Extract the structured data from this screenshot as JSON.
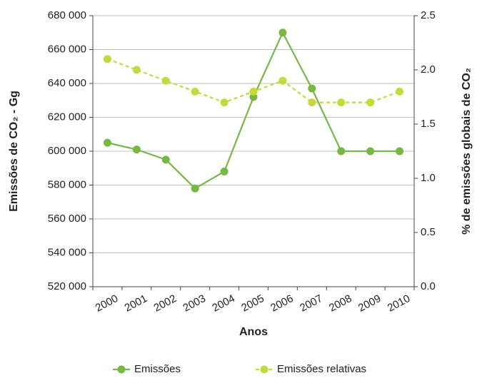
{
  "chart_data": {
    "type": "line",
    "x_label": "Anos",
    "y_label": "Emissões de CO₂ - Gg",
    "y2_label": "% de emissões globais de CO₂",
    "categories": [
      "2000",
      "2001",
      "2002",
      "2003",
      "2004",
      "2005",
      "2006",
      "2007",
      "2008",
      "2009",
      "2010"
    ],
    "series": [
      {
        "name": "Emissões",
        "color": "#76b843",
        "style": "solid",
        "values": [
          605000,
          601000,
          595000,
          578000,
          588000,
          632000,
          670000,
          637000,
          600000,
          600000,
          600000
        ]
      },
      {
        "name": "Emissões relativas",
        "color": "#c6d93c",
        "style": "dashed",
        "axis": "y2",
        "values": [
          2.1,
          2.0,
          1.9,
          1.8,
          1.7,
          1.8,
          1.9,
          1.7,
          1.7,
          1.7,
          1.8
        ]
      }
    ],
    "ylim": [
      520000,
      680000
    ],
    "yticks": [
      {
        "value": 520000,
        "label": "520 000"
      },
      {
        "value": 540000,
        "label": "540 000"
      },
      {
        "value": 560000,
        "label": "560 000"
      },
      {
        "value": 580000,
        "label": "580 000"
      },
      {
        "value": 600000,
        "label": "600 000"
      },
      {
        "value": 620000,
        "label": "620 000"
      },
      {
        "value": 640000,
        "label": "640 000"
      },
      {
        "value": 660000,
        "label": "660 000"
      },
      {
        "value": 680000,
        "label": "680 000"
      }
    ],
    "y2lim": [
      0,
      2.5
    ],
    "y2ticks": [
      {
        "value": 0,
        "label": "0.0"
      },
      0.5,
      {
        "value": 1,
        "label": "1.0"
      },
      1.5,
      {
        "value": 2,
        "label": "2.0"
      },
      2.5
    ],
    "grid": true,
    "legend": "bottom"
  }
}
